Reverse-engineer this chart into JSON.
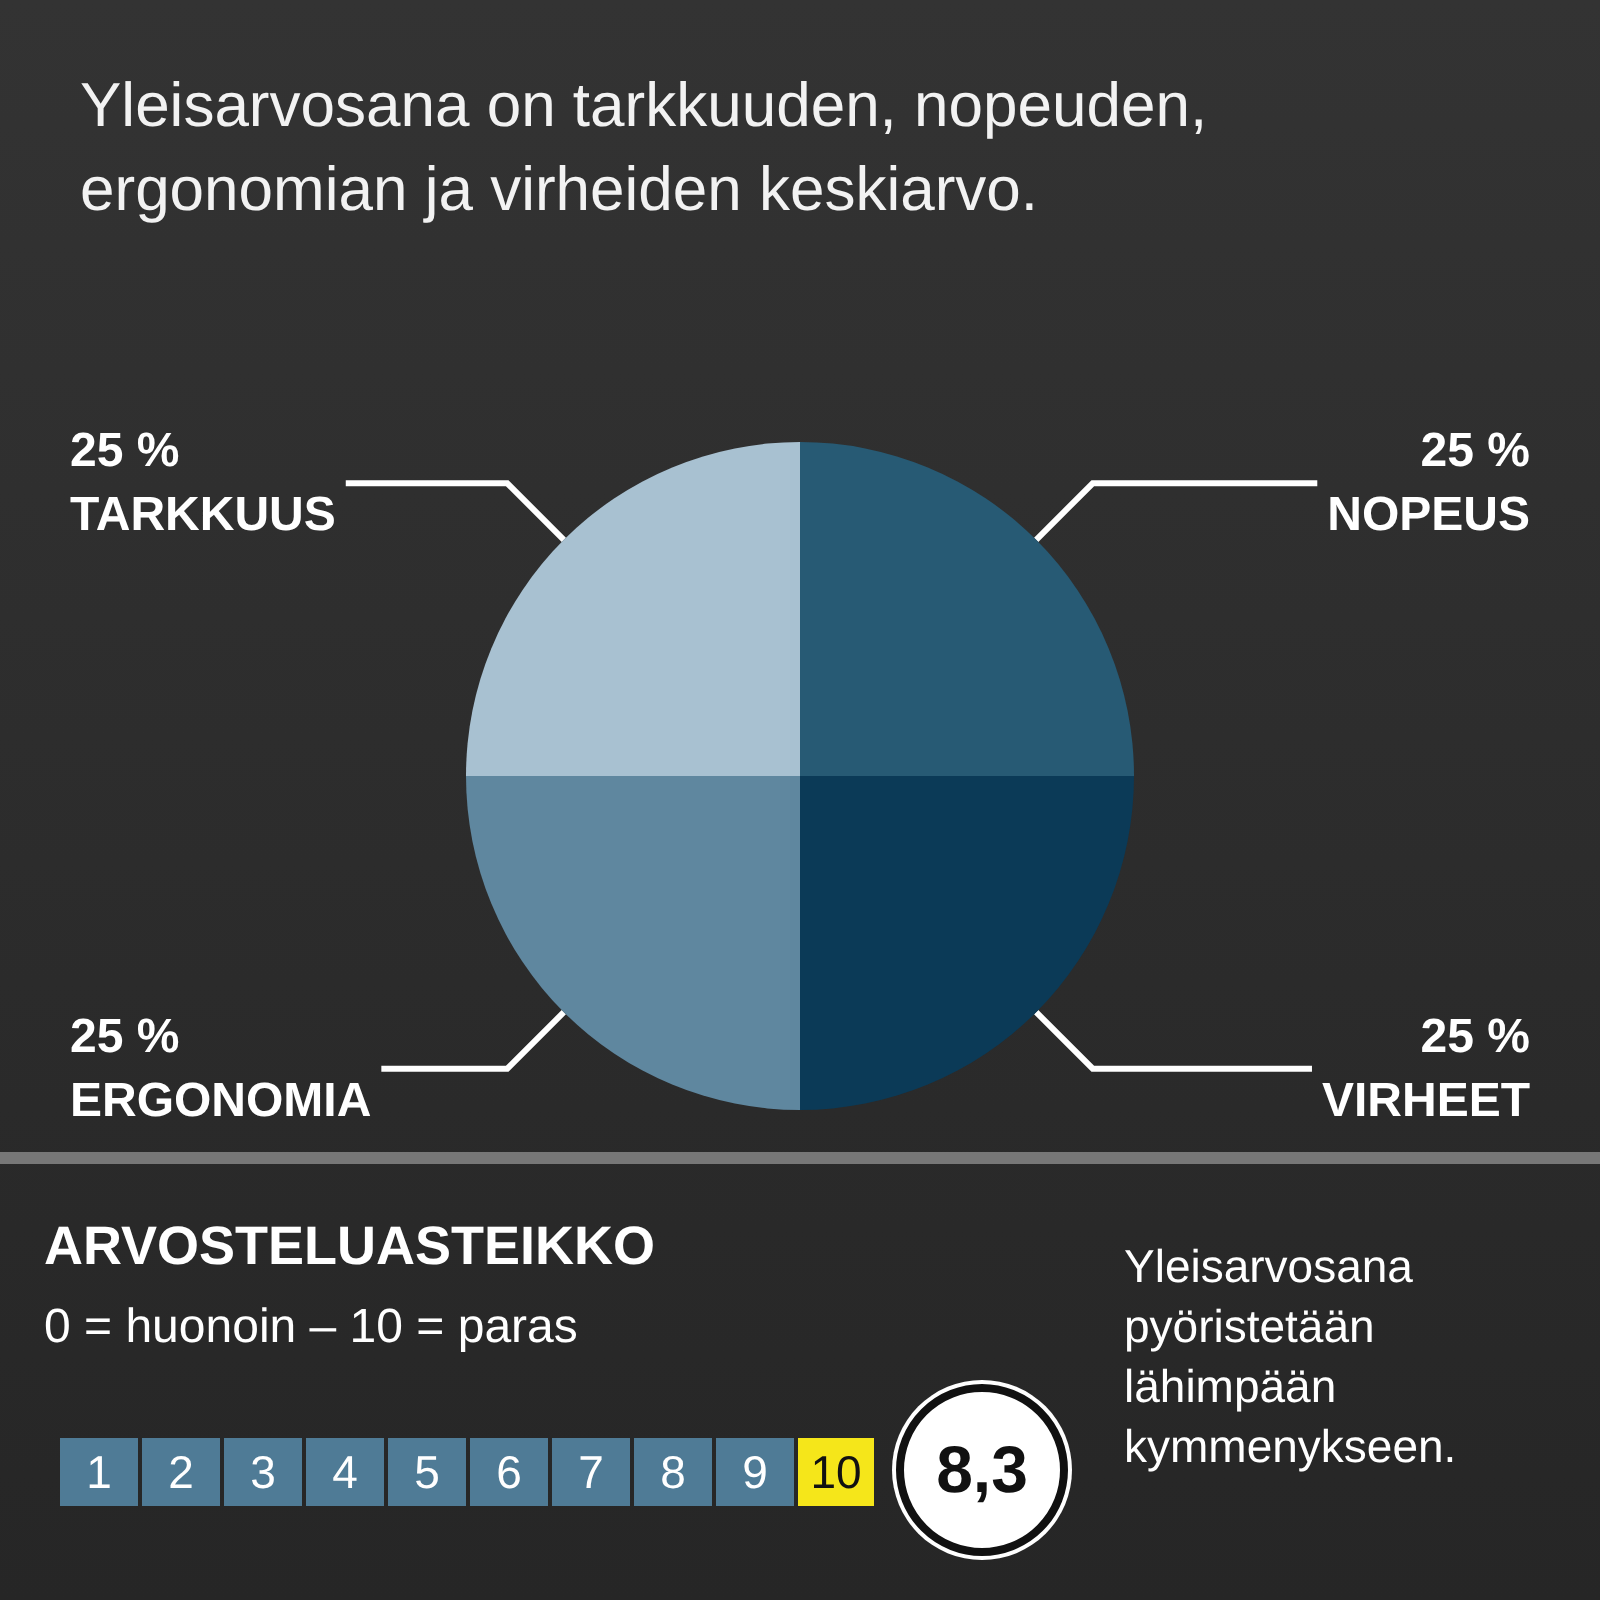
{
  "chart_data": {
    "type": "pie",
    "title": "Yleisarvosana on tarkkuuden, nopeuden, ergonomian ja virheiden keskiarvo.",
    "categories": [
      "NOPEUS",
      "VIRHEET",
      "ERGONOMIA",
      "TARKKUUS"
    ],
    "values": [
      25,
      25,
      25,
      25
    ],
    "value_labels": [
      "25 %",
      "25 %",
      "25 %",
      "25 %"
    ],
    "colors": [
      "#275a74",
      "#0b3a57",
      "#5f879f",
      "#a8c1d1"
    ],
    "legend": false,
    "annotations": [
      "ARVOSTELUASTEIKKO",
      "0 = huonoin – 10 = paras",
      "1",
      "2",
      "3",
      "4",
      "5",
      "6",
      "7",
      "8",
      "9",
      "10",
      "8,3",
      "Yleisarvosana pyöristetään lähimpään kymmenykseen."
    ]
  }
}
